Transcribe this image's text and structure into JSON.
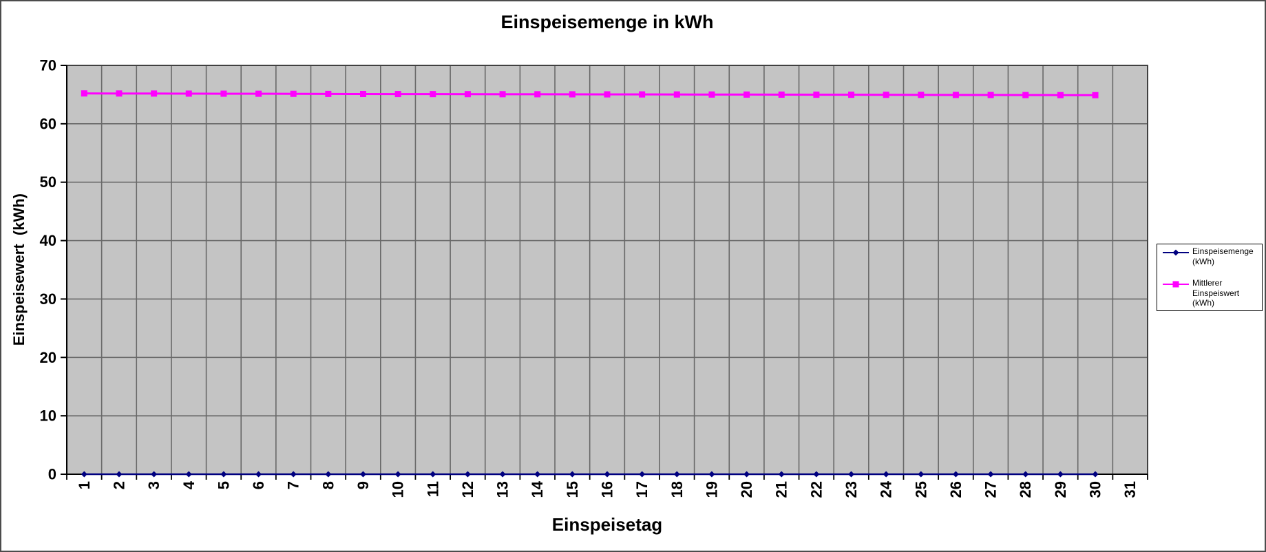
{
  "window": {
    "background": "#ffffff",
    "frame_border_color": "#4c4c4c"
  },
  "chart_data": {
    "type": "line",
    "title": "Einspeisemenge in kWh",
    "xlabel": "Einspeisetag",
    "ylabel": "Einspeisewert  (kWh)",
    "x_categories": [
      "1",
      "2",
      "3",
      "4",
      "5",
      "6",
      "7",
      "8",
      "9",
      "10",
      "11",
      "12",
      "13",
      "14",
      "15",
      "16",
      "17",
      "18",
      "19",
      "20",
      "21",
      "22",
      "23",
      "24",
      "25",
      "26",
      "27",
      "28",
      "29",
      "30",
      "31"
    ],
    "ylim": [
      0,
      70
    ],
    "y_ticks": [
      0,
      10,
      20,
      30,
      40,
      50,
      60,
      70
    ],
    "grid": "both",
    "plot_bg_color": "#c4c4c4",
    "grid_color": "#686868",
    "plot_border_color": "#404040",
    "axis_color": "#000000",
    "legend_position": "right",
    "series": [
      {
        "name": "Einspeisemenge (kWh)",
        "color": "#000080",
        "marker": "diamond",
        "values": [
          0,
          0,
          0,
          0,
          0,
          0,
          0,
          0,
          0,
          0,
          0,
          0,
          0,
          0,
          0,
          0,
          0,
          0,
          0,
          0,
          0,
          0,
          0,
          0,
          0,
          0,
          0,
          0,
          0,
          0,
          null
        ]
      },
      {
        "name": "Mittlerer Einspeiswert (kWh)",
        "color": "#ff00ff",
        "marker": "square",
        "values": [
          65.2,
          65.19,
          65.18,
          65.17,
          65.16,
          65.15,
          65.14,
          65.12,
          65.11,
          65.1,
          65.09,
          65.08,
          65.07,
          65.06,
          65.05,
          65.04,
          65.03,
          65.02,
          65.01,
          65.0,
          64.99,
          64.98,
          64.97,
          64.96,
          64.95,
          64.94,
          64.93,
          64.92,
          64.91,
          64.9,
          null
        ]
      }
    ]
  }
}
